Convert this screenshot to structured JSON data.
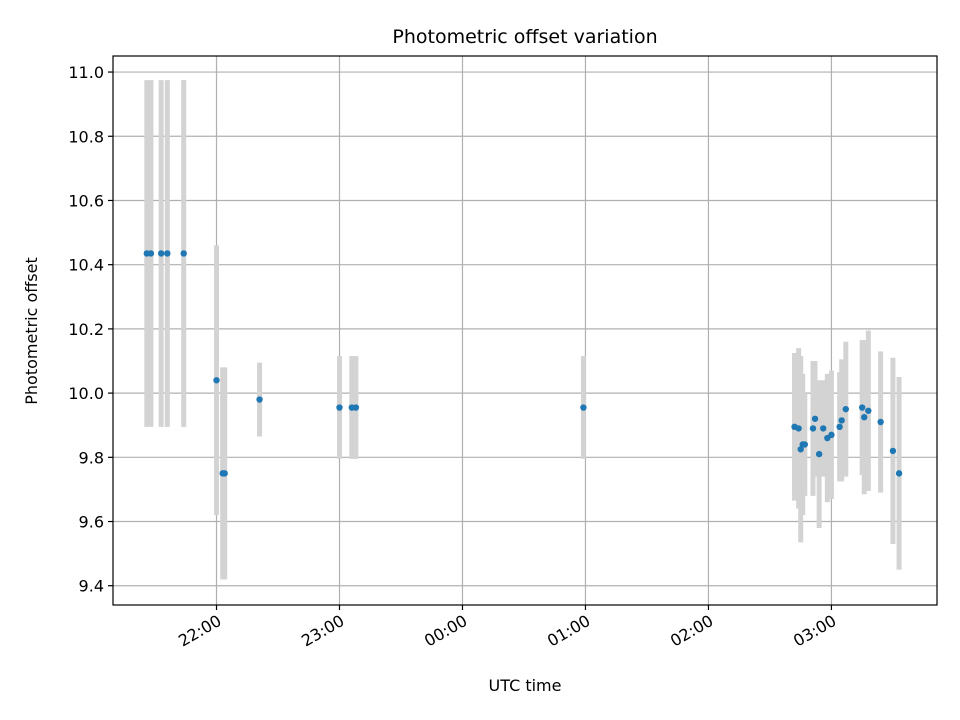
{
  "chart_data": {
    "type": "scatter",
    "title": "Photometric offset variation",
    "xlabel": "UTC time",
    "ylabel": "Photometric offset",
    "x_axis": "time",
    "x_ticks": [
      "22:00",
      "23:00",
      "00:00",
      "01:00",
      "02:00",
      "03:00"
    ],
    "y_ticks": [
      "9.4",
      "9.6",
      "9.8",
      "10.0",
      "10.2",
      "10.4",
      "10.6",
      "10.8",
      "11.0"
    ],
    "ylim": [
      9.34,
      11.05
    ],
    "grid": true,
    "colors": {
      "points": "#1f77b4",
      "errorbars": "#d3d3d3",
      "grid": "#b0b0b0"
    },
    "series": [
      {
        "points": [
          {
            "x": "21:26",
            "y": 10.435,
            "err": 0.54
          },
          {
            "x": "21:28",
            "y": 10.435,
            "err": 0.54
          },
          {
            "x": "21:33",
            "y": 10.435,
            "err": 0.54
          },
          {
            "x": "21:36",
            "y": 10.435,
            "err": 0.54
          },
          {
            "x": "21:44",
            "y": 10.435,
            "err": 0.54
          },
          {
            "x": "22:00",
            "y": 10.04,
            "err": 0.42
          },
          {
            "x": "22:03",
            "y": 9.75,
            "err": 0.33
          },
          {
            "x": "22:04",
            "y": 9.75,
            "err": 0.33
          },
          {
            "x": "22:21",
            "y": 9.98,
            "err": 0.115
          },
          {
            "x": "23:00",
            "y": 9.955,
            "err": 0.16
          },
          {
            "x": "23:06",
            "y": 9.955,
            "err": 0.16
          },
          {
            "x": "23:08",
            "y": 9.955,
            "err": 0.16
          },
          {
            "x": "00:59",
            "y": 9.955,
            "err": 0.16
          },
          {
            "x": "02:42",
            "y": 9.895,
            "err": 0.23
          },
          {
            "x": "02:44",
            "y": 9.89,
            "err": 0.25
          },
          {
            "x": "02:45",
            "y": 9.825,
            "err": 0.29
          },
          {
            "x": "02:46",
            "y": 9.84,
            "err": 0.22
          },
          {
            "x": "02:47",
            "y": 9.84,
            "err": 0.16
          },
          {
            "x": "02:51",
            "y": 9.89,
            "err": 0.21
          },
          {
            "x": "02:52",
            "y": 9.92,
            "err": 0.18
          },
          {
            "x": "02:54",
            "y": 9.81,
            "err": 0.23
          },
          {
            "x": "02:56",
            "y": 9.89,
            "err": 0.15
          },
          {
            "x": "02:58",
            "y": 9.86,
            "err": 0.2
          },
          {
            "x": "03:00",
            "y": 9.87,
            "err": 0.2
          },
          {
            "x": "03:04",
            "y": 9.895,
            "err": 0.17
          },
          {
            "x": "03:05",
            "y": 9.915,
            "err": 0.19
          },
          {
            "x": "03:07",
            "y": 9.95,
            "err": 0.21
          },
          {
            "x": "03:15",
            "y": 9.955,
            "err": 0.21
          },
          {
            "x": "03:16",
            "y": 9.925,
            "err": 0.24
          },
          {
            "x": "03:18",
            "y": 9.945,
            "err": 0.25
          },
          {
            "x": "03:24",
            "y": 9.91,
            "err": 0.22
          },
          {
            "x": "03:30",
            "y": 9.82,
            "err": 0.29
          },
          {
            "x": "03:33",
            "y": 9.75,
            "err": 0.3
          }
        ]
      }
    ]
  }
}
